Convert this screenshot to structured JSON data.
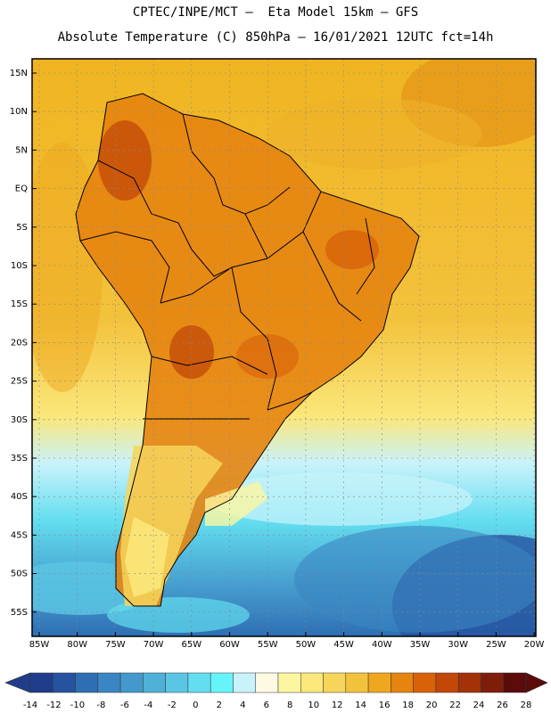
{
  "header": {
    "title_line1": "CPTEC/INPE/MCT –  Eta Model 15km – GFS",
    "title_line2": "Absolute Temperature (C) 850hPa – 16/01/2021 12UTC fct=14h"
  },
  "map": {
    "lat_labels": [
      "15N",
      "10N",
      "5N",
      "EQ",
      "5S",
      "10S",
      "15S",
      "20S",
      "25S",
      "30S",
      "35S",
      "40S",
      "45S",
      "50S",
      "55S"
    ],
    "lon_labels": [
      "85W",
      "80W",
      "75W",
      "70W",
      "65W",
      "60W",
      "55W",
      "50W",
      "45W",
      "40W",
      "35W",
      "30W",
      "25W",
      "20W"
    ]
  },
  "colorbar": {
    "labels": [
      "-14",
      "-12",
      "-10",
      "-8",
      "-6",
      "-4",
      "-2",
      "0",
      "2",
      "4",
      "6",
      "8",
      "10",
      "12",
      "14",
      "16",
      "18",
      "20",
      "22",
      "24",
      "26",
      "28"
    ],
    "colors": [
      "#1f3d8a",
      "#2553a0",
      "#2e6fb4",
      "#3a86c2",
      "#4499cc",
      "#4fb0d8",
      "#5ac6e4",
      "#63def0",
      "#66f4fb",
      "#c9f3fb",
      "#fef9e2",
      "#fdf6a0",
      "#fbe77a",
      "#f7d55a",
      "#f3c23c",
      "#eea71f",
      "#e5840f",
      "#d8610a",
      "#c24808",
      "#a43208",
      "#7e1e0a",
      "#5a0b0a"
    ]
  }
}
